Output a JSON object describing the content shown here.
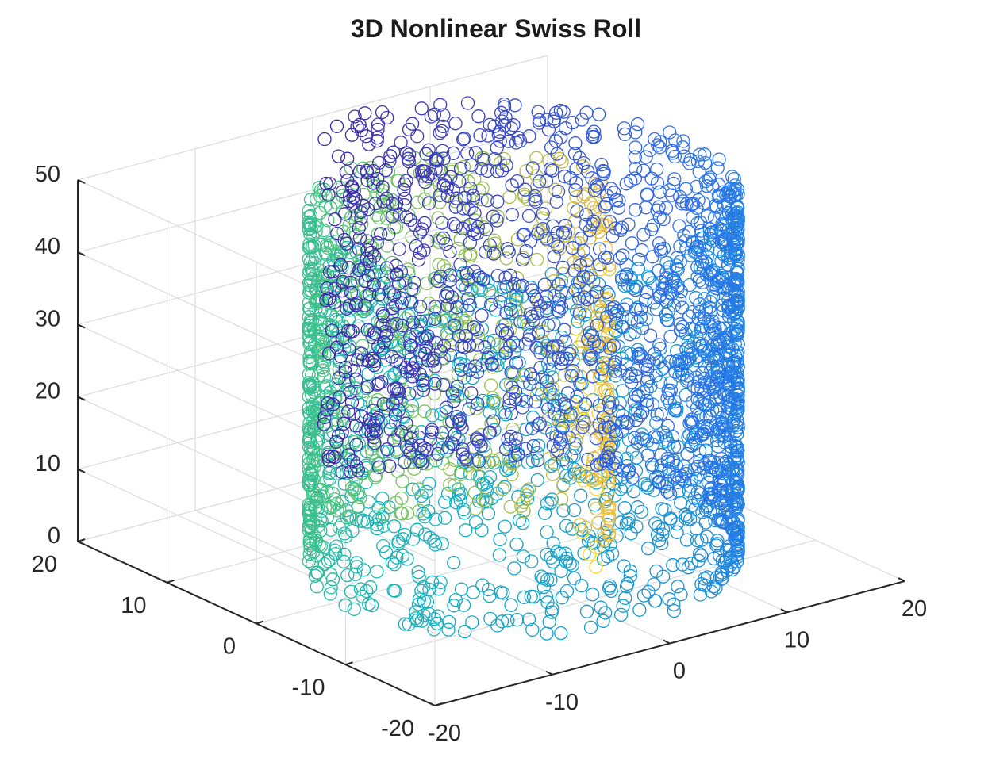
{
  "chart_data": {
    "type": "scatter",
    "title": "3D Nonlinear Swiss Roll",
    "xlabel": "",
    "ylabel": "",
    "zlabel": "",
    "xlim": [
      -20,
      20
    ],
    "ylim": [
      -20,
      20
    ],
    "zlim": [
      0,
      50
    ],
    "x_ticks": [
      "-20",
      "-10",
      "0",
      "10",
      "20"
    ],
    "y_ticks": [
      "-20",
      "-10",
      "0",
      "10",
      "20"
    ],
    "z_ticks": [
      "0",
      "10",
      "20",
      "30",
      "40",
      "50"
    ],
    "grid": true,
    "marker": "circle-open",
    "colormap": "parula",
    "colors": {
      "axis": "#262626",
      "grid": "#dcdcdc",
      "map_low": "#3e26a8",
      "map_high": "#f9fb0e"
    },
    "series": [
      {
        "description_free": true,
        "t_range": [
          4.7,
          14.1
        ],
        "radius_equals_t": true,
        "z_range": [
          0,
          50
        ],
        "color_by": "t",
        "point_count": 3200
      }
    ]
  }
}
